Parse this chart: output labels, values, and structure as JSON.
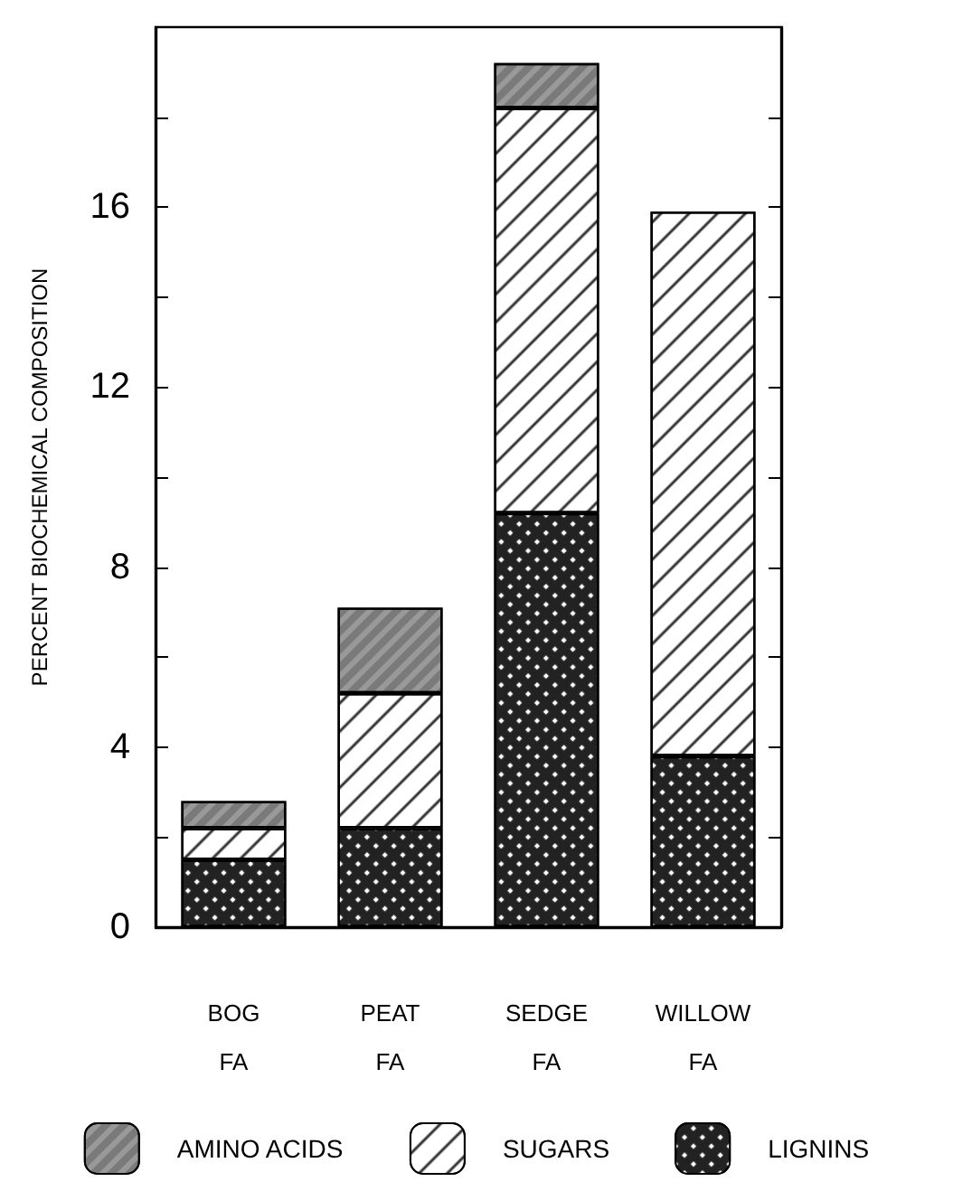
{
  "chart_data": {
    "type": "bar",
    "ylabel": "PERCENT BIOCHEMICAL COMPOSITION",
    "categories": [
      "BOG FA",
      "PEAT FA",
      "SEDGE FA",
      "WILLOW FA"
    ],
    "stacked": true,
    "series": [
      {
        "name": "LIGNINS",
        "color": "#222222",
        "values": [
          1.5,
          2.2,
          9.2,
          3.8
        ]
      },
      {
        "name": "SUGARS",
        "color": "#ffffff",
        "values": [
          0.7,
          3.0,
          9.0,
          12.1
        ]
      },
      {
        "name": "AMINO ACIDS",
        "color": "#999999",
        "values": [
          0.6,
          1.9,
          1.0,
          null
        ]
      }
    ],
    "ylim": [
      0,
      20
    ],
    "yticks": [
      0,
      {
        "value": 2,
        "label": null
      },
      4,
      {
        "value": 6,
        "label": null
      },
      8,
      {
        "value": 10,
        "label": null
      },
      12,
      {
        "value": 14,
        "label": null
      },
      16,
      {
        "value": 18,
        "label": null
      }
    ],
    "legend": "bottom",
    "grid": false
  }
}
